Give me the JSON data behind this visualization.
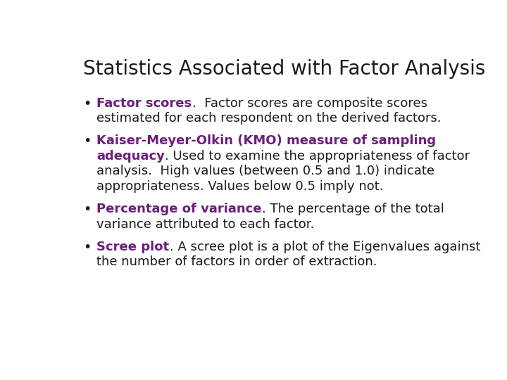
{
  "title": "Statistics Associated with Factor Analysis",
  "title_color": "#1a1a1a",
  "title_fontsize": 20,
  "title_fontweight": "normal",
  "background_color": "#ffffff",
  "purple_color": "#6B1F7C",
  "black_color": "#1a1a1a",
  "body_fontsize": 13,
  "bullet_char": "•",
  "bullets": [
    {
      "lines": [
        [
          {
            "text": "Factor scores",
            "bold": true,
            "color": "#6B1F7C"
          },
          {
            "text": ".  Factor scores are composite scores",
            "bold": false,
            "color": "#1a1a1a"
          }
        ],
        [
          {
            "text": "estimated for each respondent on the derived factors.",
            "bold": false,
            "color": "#1a1a1a"
          }
        ]
      ]
    },
    {
      "lines": [
        [
          {
            "text": "Kaiser-Meyer-Olkin (KMO) measure of sampling",
            "bold": true,
            "color": "#6B1F7C"
          }
        ],
        [
          {
            "text": "adequacy",
            "bold": true,
            "color": "#6B1F7C"
          },
          {
            "text": ". Used to examine the appropriateness of factor",
            "bold": false,
            "color": "#1a1a1a"
          }
        ],
        [
          {
            "text": "analysis.  High values (between 0.5 and 1.0) indicate",
            "bold": false,
            "color": "#1a1a1a"
          }
        ],
        [
          {
            "text": "appropriateness. Values below 0.5 imply not.",
            "bold": false,
            "color": "#1a1a1a"
          }
        ]
      ]
    },
    {
      "lines": [
        [
          {
            "text": "Percentage of variance",
            "bold": true,
            "color": "#6B1F7C"
          },
          {
            "text": ". The percentage of the total",
            "bold": false,
            "color": "#1a1a1a"
          }
        ],
        [
          {
            "text": "variance attributed to each factor.",
            "bold": false,
            "color": "#1a1a1a"
          }
        ]
      ]
    },
    {
      "lines": [
        [
          {
            "text": "Scree plot",
            "bold": true,
            "color": "#6B1F7C"
          },
          {
            "text": ". A scree plot is a plot of the Eigenvalues against",
            "bold": false,
            "color": "#1a1a1a"
          }
        ],
        [
          {
            "text": "the number of factors in order of extraction.",
            "bold": false,
            "color": "#1a1a1a"
          }
        ]
      ]
    }
  ]
}
